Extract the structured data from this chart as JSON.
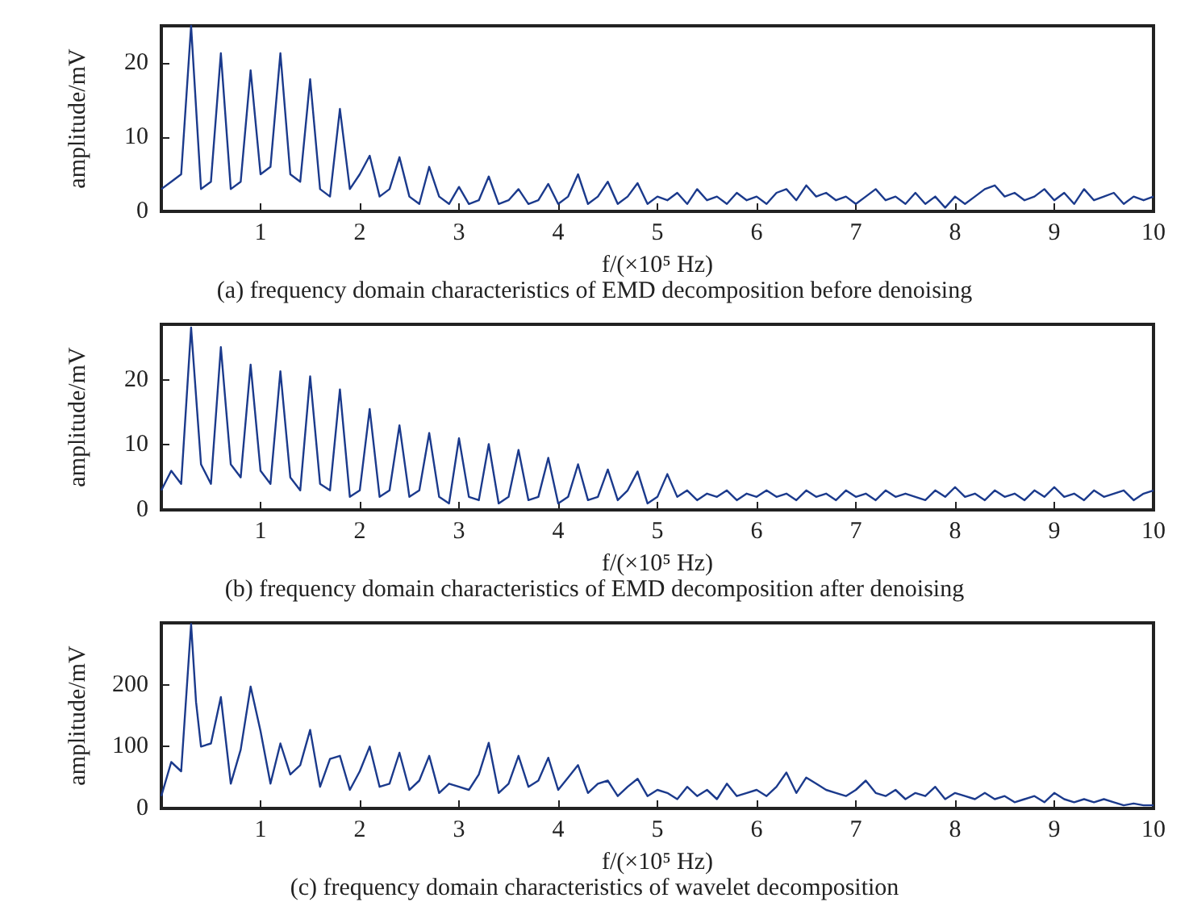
{
  "chart_data": [
    {
      "type": "line",
      "title": "(a) frequency domain characteristics of EMD decomposition before denoising",
      "xlabel": "f/(×10⁵ Hz)",
      "ylabel": "amplitude/mV",
      "xlim": [
        0,
        10
      ],
      "xticks": [
        1,
        2,
        3,
        4,
        5,
        6,
        7,
        8,
        9,
        10
      ],
      "ylim": [
        0,
        25
      ],
      "yticks": [
        0,
        10,
        20
      ],
      "grid": false,
      "marker": "none",
      "line_style": "solid",
      "x": [
        0,
        0.1,
        0.2,
        0.3,
        0.4,
        0.5,
        0.6,
        0.7,
        0.8,
        0.9,
        1,
        1.1,
        1.2,
        1.3,
        1.4,
        1.5,
        1.6,
        1.7,
        1.8,
        1.9,
        2,
        2.1,
        2.2,
        2.3,
        2.4,
        2.5,
        2.6,
        2.7,
        2.8,
        2.9,
        3,
        3.1,
        3.2,
        3.3,
        3.4,
        3.5,
        3.6,
        3.7,
        3.8,
        3.9,
        4,
        4.1,
        4.2,
        4.3,
        4.4,
        4.5,
        4.6,
        4.7,
        4.8,
        4.9,
        5,
        5.1,
        5.2,
        5.3,
        5.4,
        5.5,
        5.6,
        5.7,
        5.8,
        5.9,
        6,
        6.1,
        6.2,
        6.3,
        6.4,
        6.5,
        6.6,
        6.7,
        6.8,
        6.9,
        7,
        7.1,
        7.2,
        7.3,
        7.4,
        7.5,
        7.6,
        7.7,
        7.8,
        7.9,
        8,
        8.1,
        8.2,
        8.3,
        8.4,
        8.5,
        8.6,
        8.7,
        8.8,
        8.9,
        9,
        9.1,
        9.2,
        9.3,
        9.4,
        9.5,
        9.6,
        9.7,
        9.8,
        9.9,
        10
      ],
      "series": [
        {
          "color": "#1b3a8c",
          "values": [
            3,
            4,
            5,
            25,
            3,
            4,
            21.3,
            3,
            4,
            19,
            5,
            6,
            21.3,
            5,
            4,
            17.8,
            3,
            2,
            13.8,
            3,
            5,
            7.5,
            2,
            3,
            7.3,
            2,
            1,
            6,
            2,
            1,
            3.3,
            1,
            1.5,
            4.7,
            1,
            1.5,
            3,
            1,
            1.5,
            3.7,
            1,
            2,
            5,
            1,
            2,
            4,
            1,
            2,
            3.8,
            1,
            2,
            1.5,
            2.5,
            1,
            3,
            1.5,
            2,
            1,
            2.5,
            1.5,
            2,
            1,
            2.5,
            3,
            1.5,
            3.5,
            2,
            2.5,
            1.5,
            2,
            1,
            2,
            3,
            1.5,
            2,
            1,
            2.5,
            1,
            2,
            0.5,
            2,
            1,
            2,
            3,
            3.5,
            2,
            2.5,
            1.5,
            2,
            3,
            1.5,
            2.5,
            1,
            3,
            1.5,
            2,
            2.5,
            1,
            2,
            1.5,
            2
          ]
        }
      ]
    },
    {
      "type": "line",
      "title": "(b) frequency domain characteristics of EMD decomposition after denoising",
      "xlabel": "f/(×10⁵ Hz)",
      "ylabel": "amplitude/mV",
      "xlim": [
        0,
        10
      ],
      "xticks": [
        1,
        2,
        3,
        4,
        5,
        6,
        7,
        8,
        9,
        10
      ],
      "ylim": [
        0,
        28.5
      ],
      "yticks": [
        0,
        10,
        20
      ],
      "grid": false,
      "marker": "none",
      "line_style": "solid",
      "x": [
        0,
        0.1,
        0.2,
        0.3,
        0.4,
        0.5,
        0.6,
        0.7,
        0.8,
        0.9,
        1,
        1.1,
        1.2,
        1.3,
        1.4,
        1.5,
        1.6,
        1.7,
        1.8,
        1.9,
        2,
        2.1,
        2.2,
        2.3,
        2.4,
        2.5,
        2.6,
        2.7,
        2.8,
        2.9,
        3,
        3.1,
        3.2,
        3.3,
        3.4,
        3.5,
        3.6,
        3.7,
        3.8,
        3.9,
        4,
        4.1,
        4.2,
        4.3,
        4.4,
        4.5,
        4.6,
        4.7,
        4.8,
        4.9,
        5,
        5.1,
        5.2,
        5.3,
        5.4,
        5.5,
        5.6,
        5.7,
        5.8,
        5.9,
        6,
        6.1,
        6.2,
        6.3,
        6.4,
        6.5,
        6.6,
        6.7,
        6.8,
        6.9,
        7,
        7.1,
        7.2,
        7.3,
        7.4,
        7.5,
        7.6,
        7.7,
        7.8,
        7.9,
        8,
        8.1,
        8.2,
        8.3,
        8.4,
        8.5,
        8.6,
        8.7,
        8.8,
        8.9,
        9,
        9.1,
        9.2,
        9.3,
        9.4,
        9.5,
        9.6,
        9.7,
        9.8,
        9.9,
        10
      ],
      "series": [
        {
          "color": "#1b3a8c",
          "values": [
            3,
            6,
            4,
            28,
            7,
            4,
            25,
            7,
            5,
            22.3,
            6,
            4,
            21.3,
            5,
            3,
            20.5,
            4,
            3,
            18.5,
            2,
            3,
            15.5,
            2,
            3,
            13,
            2,
            3,
            11.8,
            2,
            1,
            11,
            2,
            1.5,
            10.1,
            1,
            2,
            9.2,
            1.5,
            2,
            8,
            1,
            2,
            7,
            1.5,
            2,
            6.2,
            1.5,
            3,
            5.9,
            1,
            2,
            5.5,
            2,
            3,
            1.5,
            2.5,
            2,
            3,
            1.5,
            2.5,
            2,
            3,
            2,
            2.5,
            1.5,
            3,
            2,
            2.5,
            1.5,
            3,
            2,
            2.5,
            1.5,
            3,
            2,
            2.5,
            2,
            1.5,
            3,
            2,
            3.5,
            2,
            2.5,
            1.5,
            3,
            2,
            2.5,
            1.5,
            3,
            2,
            3.5,
            2,
            2.5,
            1.5,
            3,
            2,
            2.5,
            3,
            1.5,
            2.5,
            3
          ]
        }
      ]
    },
    {
      "type": "line",
      "title": "(c) frequency domain characteristics of wavelet decomposition",
      "xlabel": "f/(×10⁵ Hz)",
      "ylabel": "amplitude/mV",
      "xlim": [
        0,
        10
      ],
      "xticks": [
        1,
        2,
        3,
        4,
        5,
        6,
        7,
        8,
        9,
        10
      ],
      "ylim": [
        0,
        300
      ],
      "yticks": [
        0,
        100,
        200
      ],
      "grid": false,
      "marker": "none",
      "line_style": "solid",
      "x": [
        0,
        0.1,
        0.2,
        0.3,
        0.35,
        0.4,
        0.5,
        0.6,
        0.7,
        0.8,
        0.9,
        1,
        1.1,
        1.2,
        1.3,
        1.4,
        1.5,
        1.6,
        1.7,
        1.8,
        1.9,
        2,
        2.1,
        2.2,
        2.3,
        2.4,
        2.5,
        2.6,
        2.7,
        2.8,
        2.9,
        3,
        3.1,
        3.2,
        3.3,
        3.4,
        3.5,
        3.6,
        3.7,
        3.8,
        3.9,
        4,
        4.1,
        4.2,
        4.3,
        4.4,
        4.5,
        4.6,
        4.7,
        4.8,
        4.9,
        5,
        5.1,
        5.2,
        5.3,
        5.4,
        5.5,
        5.6,
        5.7,
        5.8,
        5.9,
        6,
        6.1,
        6.2,
        6.3,
        6.4,
        6.5,
        6.6,
        6.7,
        6.8,
        6.9,
        7,
        7.1,
        7.2,
        7.3,
        7.4,
        7.5,
        7.6,
        7.7,
        7.8,
        7.9,
        8,
        8.1,
        8.2,
        8.3,
        8.4,
        8.5,
        8.6,
        8.7,
        8.8,
        8.9,
        9,
        9.1,
        9.2,
        9.3,
        9.4,
        9.5,
        9.6,
        9.7,
        9.8,
        9.9,
        10
      ],
      "series": [
        {
          "color": "#1b3a8c",
          "values": [
            20,
            75,
            60,
            298,
            172,
            100,
            105,
            180,
            40,
            95,
            197,
            125,
            40,
            105,
            55,
            70,
            127,
            35,
            80,
            85,
            30,
            60,
            100,
            35,
            40,
            90,
            30,
            45,
            85,
            25,
            40,
            35,
            30,
            55,
            106,
            25,
            40,
            85,
            35,
            45,
            82,
            30,
            50,
            70,
            25,
            40,
            45,
            20,
            35,
            48,
            20,
            30,
            25,
            15,
            35,
            20,
            30,
            15,
            40,
            20,
            25,
            30,
            20,
            35,
            58,
            25,
            50,
            40,
            30,
            25,
            20,
            30,
            45,
            25,
            20,
            30,
            15,
            25,
            20,
            35,
            15,
            25,
            20,
            15,
            25,
            15,
            20,
            10,
            15,
            20,
            10,
            25,
            15,
            10,
            15,
            10,
            15,
            10,
            5,
            8,
            5,
            5
          ]
        }
      ]
    }
  ]
}
